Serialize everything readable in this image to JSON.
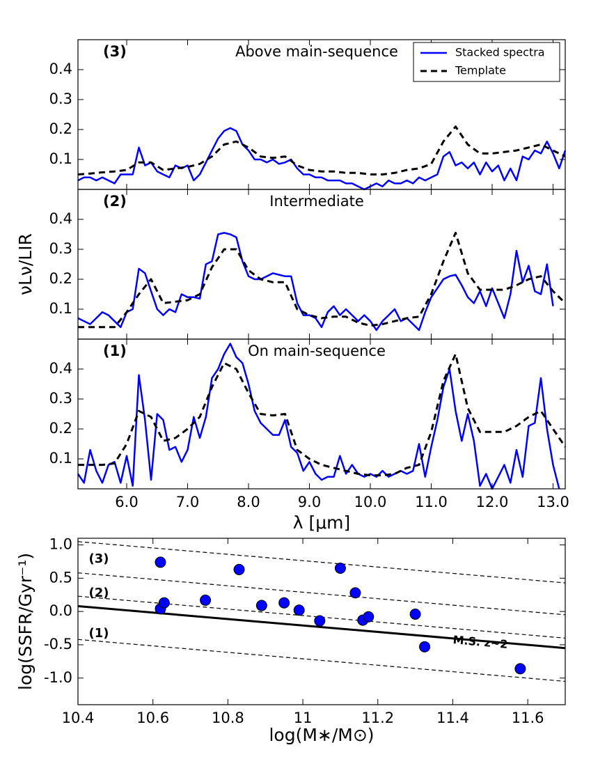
{
  "chart_data": [
    {
      "type": "line",
      "panel_label": "(3)",
      "title": "Above main-sequence",
      "legend": "upper right",
      "xlim": [
        5.2,
        13.2
      ],
      "ylim": [
        0,
        0.5
      ],
      "yticks": [
        0.1,
        0.2,
        0.3,
        0.4
      ],
      "series": [
        {
          "name": "Stacked spectra",
          "color": "#0000ff",
          "style": "solid",
          "x": [
            5.2,
            5.3,
            5.4,
            5.5,
            5.6,
            5.7,
            5.8,
            5.9,
            6.0,
            6.1,
            6.2,
            6.3,
            6.4,
            6.5,
            6.6,
            6.7,
            6.8,
            6.9,
            7.0,
            7.1,
            7.2,
            7.3,
            7.4,
            7.5,
            7.6,
            7.7,
            7.8,
            7.9,
            8.0,
            8.1,
            8.2,
            8.3,
            8.4,
            8.5,
            8.6,
            8.7,
            8.8,
            8.9,
            9.0,
            9.1,
            9.2,
            9.3,
            9.4,
            9.5,
            9.6,
            9.7,
            9.8,
            9.9,
            10.0,
            10.1,
            10.2,
            10.3,
            10.4,
            10.5,
            10.6,
            10.7,
            10.8,
            10.9,
            11.0,
            11.1,
            11.2,
            11.3,
            11.4,
            11.5,
            11.6,
            11.7,
            11.8,
            11.9,
            12.0,
            12.1,
            12.2,
            12.3,
            12.4,
            12.5,
            12.6,
            12.7,
            12.8,
            12.9,
            13.0,
            13.1,
            13.2
          ],
          "values": [
            0.03,
            0.04,
            0.04,
            0.03,
            0.04,
            0.03,
            0.02,
            0.05,
            0.05,
            0.05,
            0.14,
            0.08,
            0.09,
            0.06,
            0.05,
            0.04,
            0.08,
            0.07,
            0.08,
            0.03,
            0.05,
            0.09,
            0.13,
            0.17,
            0.195,
            0.205,
            0.195,
            0.15,
            0.13,
            0.1,
            0.1,
            0.09,
            0.1,
            0.085,
            0.09,
            0.1,
            0.07,
            0.05,
            0.05,
            0.04,
            0.04,
            0.03,
            0.03,
            0.03,
            0.02,
            0.02,
            0.01,
            0.0,
            0.01,
            0.02,
            0.01,
            0.03,
            0.02,
            0.02,
            0.03,
            0.02,
            0.04,
            0.03,
            0.04,
            0.05,
            0.11,
            0.125,
            0.08,
            0.09,
            0.07,
            0.09,
            0.05,
            0.09,
            0.06,
            0.08,
            0.03,
            0.07,
            0.03,
            0.11,
            0.1,
            0.13,
            0.12,
            0.16,
            0.12,
            0.07,
            0.13
          ]
        },
        {
          "name": "Template",
          "color": "#000000",
          "style": "dashed",
          "x": [
            5.2,
            5.4,
            5.6,
            5.8,
            6.0,
            6.2,
            6.4,
            6.6,
            6.8,
            7.0,
            7.2,
            7.4,
            7.6,
            7.8,
            8.0,
            8.2,
            8.4,
            8.6,
            8.8,
            9.0,
            9.2,
            9.4,
            9.6,
            9.8,
            10.0,
            10.2,
            10.4,
            10.6,
            10.8,
            11.0,
            11.2,
            11.4,
            11.6,
            11.8,
            12.0,
            12.2,
            12.4,
            12.6,
            12.8,
            13.0,
            13.2
          ],
          "values": [
            0.05,
            0.053,
            0.057,
            0.06,
            0.065,
            0.09,
            0.09,
            0.065,
            0.07,
            0.075,
            0.085,
            0.11,
            0.15,
            0.16,
            0.14,
            0.11,
            0.105,
            0.11,
            0.08,
            0.065,
            0.06,
            0.06,
            0.055,
            0.055,
            0.05,
            0.05,
            0.055,
            0.065,
            0.07,
            0.085,
            0.16,
            0.21,
            0.15,
            0.12,
            0.12,
            0.125,
            0.13,
            0.14,
            0.15,
            0.13,
            0.11
          ]
        }
      ]
    },
    {
      "type": "line",
      "panel_label": "(2)",
      "title": "Intermediate",
      "ylabel": "νLν/LIR",
      "xlim": [
        5.2,
        13.2
      ],
      "ylim": [
        0,
        0.5
      ],
      "yticks": [
        0.1,
        0.2,
        0.3,
        0.4
      ],
      "series": [
        {
          "color": "#0000ff",
          "style": "solid",
          "x": [
            5.2,
            5.3,
            5.4,
            5.5,
            5.6,
            5.7,
            5.8,
            5.9,
            6.0,
            6.1,
            6.2,
            6.3,
            6.4,
            6.5,
            6.6,
            6.7,
            6.8,
            6.9,
            7.0,
            7.1,
            7.2,
            7.3,
            7.4,
            7.5,
            7.6,
            7.7,
            7.8,
            7.9,
            8.0,
            8.1,
            8.2,
            8.3,
            8.4,
            8.5,
            8.6,
            8.7,
            8.8,
            8.9,
            9.0,
            9.1,
            9.2,
            9.3,
            9.4,
            9.5,
            9.6,
            9.7,
            9.8,
            9.9,
            10.0,
            10.1,
            10.2,
            10.3,
            10.4,
            10.5,
            10.6,
            10.7,
            10.8,
            10.9,
            11.0,
            11.1,
            11.2,
            11.3,
            11.4,
            11.5,
            11.6,
            11.7,
            11.8,
            11.9,
            12.0,
            12.1,
            12.2,
            12.3,
            12.4,
            12.5,
            12.6,
            12.7,
            12.8,
            12.9,
            13.0,
            13.1,
            13.2
          ],
          "values": [
            0.07,
            0.06,
            0.05,
            0.07,
            0.09,
            0.08,
            0.06,
            0.04,
            0.09,
            0.1,
            0.235,
            0.22,
            0.16,
            0.1,
            0.08,
            0.1,
            0.09,
            0.15,
            0.14,
            0.14,
            0.135,
            0.25,
            0.26,
            0.35,
            0.355,
            0.35,
            0.34,
            0.26,
            0.21,
            0.2,
            0.2,
            0.21,
            0.22,
            0.215,
            0.21,
            0.21,
            0.12,
            0.08,
            0.08,
            0.07,
            0.04,
            0.09,
            0.11,
            0.08,
            0.1,
            0.08,
            0.06,
            0.08,
            0.06,
            0.03,
            0.06,
            0.08,
            0.1,
            0.06,
            0.07,
            0.05,
            0.03,
            0.09,
            0.14,
            0.17,
            0.2,
            0.21,
            0.215,
            0.18,
            0.14,
            0.12,
            0.16,
            0.11,
            0.17,
            0.12,
            0.07,
            0.15,
            0.295,
            0.19,
            0.245,
            0.16,
            0.15,
            0.25,
            0.11,
            null,
            null
          ]
        },
        {
          "color": "#000000",
          "style": "dashed",
          "x": [
            5.2,
            5.4,
            5.6,
            5.8,
            6.0,
            6.2,
            6.4,
            6.6,
            6.8,
            7.0,
            7.2,
            7.4,
            7.6,
            7.8,
            8.0,
            8.2,
            8.4,
            8.6,
            8.8,
            9.0,
            9.2,
            9.4,
            9.6,
            9.8,
            10.0,
            10.2,
            10.4,
            10.6,
            10.8,
            11.0,
            11.2,
            11.4,
            11.6,
            11.8,
            12.0,
            12.2,
            12.4,
            12.6,
            12.8,
            13.0,
            13.2
          ],
          "values": [
            0.04,
            0.04,
            0.04,
            0.04,
            0.09,
            0.15,
            0.2,
            0.12,
            0.125,
            0.13,
            0.15,
            0.24,
            0.3,
            0.3,
            0.23,
            0.2,
            0.19,
            0.19,
            0.1,
            0.08,
            0.07,
            0.075,
            0.075,
            0.055,
            0.045,
            0.05,
            0.06,
            0.07,
            0.075,
            0.15,
            0.26,
            0.355,
            0.22,
            0.165,
            0.165,
            0.165,
            0.18,
            0.2,
            0.21,
            0.16,
            0.12
          ]
        }
      ]
    },
    {
      "type": "line",
      "panel_label": "(1)",
      "title": "On main-sequence",
      "xlabel": "λ [μm]",
      "xlim": [
        5.2,
        13.2
      ],
      "ylim": [
        0,
        0.5
      ],
      "yticks": [
        0.1,
        0.2,
        0.3,
        0.4
      ],
      "xticks": [
        {
          "value": 6,
          "label": "6.0"
        },
        {
          "value": 7,
          "label": "7.0"
        },
        {
          "value": 8,
          "label": "8.0"
        },
        {
          "value": 9,
          "label": "9.0"
        },
        {
          "value": 10,
          "label": "10.0"
        },
        {
          "value": 11,
          "label": "11.0"
        },
        {
          "value": 12,
          "label": "12.0"
        },
        {
          "value": 13,
          "label": "13.0"
        }
      ],
      "series": [
        {
          "color": "#0000ff",
          "style": "solid",
          "x": [
            5.2,
            5.3,
            5.4,
            5.5,
            5.6,
            5.7,
            5.8,
            5.9,
            6.0,
            6.1,
            6.2,
            6.3,
            6.4,
            6.5,
            6.6,
            6.7,
            6.8,
            6.9,
            7.0,
            7.1,
            7.2,
            7.3,
            7.4,
            7.5,
            7.6,
            7.7,
            7.8,
            7.9,
            8.0,
            8.1,
            8.2,
            8.3,
            8.4,
            8.5,
            8.6,
            8.7,
            8.8,
            8.9,
            9.0,
            9.1,
            9.2,
            9.3,
            9.4,
            9.5,
            9.6,
            9.7,
            9.8,
            9.9,
            10.0,
            10.1,
            10.2,
            10.3,
            10.4,
            10.5,
            10.6,
            10.7,
            10.8,
            10.9,
            11.0,
            11.1,
            11.2,
            11.3,
            11.4,
            11.5,
            11.6,
            11.7,
            11.8,
            11.9,
            12.0,
            12.1,
            12.2,
            12.3,
            12.4,
            12.5,
            12.6,
            12.7,
            12.8,
            12.9,
            13.0,
            13.1,
            13.2
          ],
          "values": [
            0.05,
            0.02,
            0.13,
            0.06,
            0.02,
            0.08,
            0.09,
            0.02,
            0.11,
            0.01,
            0.38,
            0.23,
            0.03,
            0.25,
            0.23,
            0.13,
            0.14,
            0.09,
            0.13,
            0.24,
            0.17,
            0.24,
            0.37,
            0.4,
            0.45,
            0.485,
            0.44,
            0.42,
            0.35,
            0.26,
            0.22,
            0.2,
            0.18,
            0.18,
            0.23,
            0.14,
            0.12,
            0.06,
            0.09,
            0.05,
            0.03,
            0.04,
            0.04,
            0.11,
            0.05,
            0.08,
            0.05,
            0.04,
            0.05,
            0.04,
            0.06,
            0.04,
            0.05,
            0.06,
            0.05,
            0.06,
            0.15,
            0.04,
            0.14,
            0.23,
            0.34,
            0.4,
            0.26,
            0.16,
            0.25,
            0.16,
            0.01,
            0.05,
            0.0,
            0.04,
            0.08,
            0.02,
            0.13,
            0.04,
            0.21,
            0.22,
            0.37,
            0.2,
            0.08,
            0.0,
            null
          ]
        },
        {
          "color": "#000000",
          "style": "dashed",
          "x": [
            5.2,
            5.4,
            5.6,
            5.8,
            6.0,
            6.2,
            6.4,
            6.6,
            6.8,
            7.0,
            7.2,
            7.4,
            7.6,
            7.8,
            8.0,
            8.2,
            8.4,
            8.6,
            8.8,
            9.0,
            9.2,
            9.4,
            9.6,
            9.8,
            10.0,
            10.2,
            10.4,
            10.6,
            10.8,
            11.0,
            11.2,
            11.4,
            11.6,
            11.8,
            12.0,
            12.2,
            12.4,
            12.6,
            12.8,
            13.0,
            13.2
          ],
          "values": [
            0.08,
            0.08,
            0.08,
            0.085,
            0.15,
            0.26,
            0.24,
            0.16,
            0.17,
            0.2,
            0.24,
            0.34,
            0.42,
            0.4,
            0.32,
            0.25,
            0.245,
            0.25,
            0.13,
            0.1,
            0.08,
            0.07,
            0.06,
            0.05,
            0.045,
            0.045,
            0.05,
            0.07,
            0.08,
            0.19,
            0.36,
            0.45,
            0.27,
            0.19,
            0.19,
            0.19,
            0.21,
            0.24,
            0.26,
            0.2,
            0.14
          ]
        }
      ]
    },
    {
      "type": "scatter",
      "xlabel": "log(M∗/M⊙)",
      "ylabel": "log(SSFR/Gyr⁻¹)",
      "xlim": [
        10.4,
        11.7
      ],
      "ylim": [
        -1.4,
        1.1
      ],
      "xticks": [
        10.4,
        10.6,
        10.8,
        11.0,
        11.2,
        11.4,
        11.6
      ],
      "yticks": [
        {
          "value": 1,
          "label": "1.0"
        },
        {
          "value": 0.5,
          "label": "0.5"
        },
        {
          "value": 0,
          "label": "0.0"
        },
        {
          "value": -0.5,
          "label": "-0.5"
        },
        {
          "value": -1,
          "label": "-1.0"
        }
      ],
      "color": "#0000ff",
      "x": [
        10.62,
        10.83,
        11.1,
        11.14,
        10.62,
        10.63,
        10.74,
        10.89,
        10.95,
        10.99,
        11.045,
        11.16,
        11.175,
        11.3,
        11.325,
        11.58
      ],
      "values": [
        0.74,
        0.63,
        0.65,
        0.28,
        0.04,
        0.13,
        0.17,
        0.09,
        0.13,
        0.02,
        -0.14,
        -0.13,
        -0.08,
        -0.04,
        -0.53,
        -0.86
      ],
      "lines": [
        {
          "style": "dashed",
          "x": [
            10.4,
            11.7
          ],
          "values": [
            1.05,
            0.43
          ]
        },
        {
          "style": "dashed",
          "x": [
            10.4,
            11.7
          ],
          "values": [
            0.58,
            -0.05
          ]
        },
        {
          "style": "dashed",
          "x": [
            10.4,
            11.7
          ],
          "values": [
            0.23,
            -0.4
          ]
        },
        {
          "style": "solid",
          "x": [
            10.4,
            11.7
          ],
          "values": [
            0.08,
            -0.55
          ]
        },
        {
          "style": "dashed",
          "x": [
            10.4,
            11.7
          ],
          "values": [
            -0.42,
            -1.05
          ]
        }
      ],
      "annotations": [
        "(3)",
        "(2)",
        "(1)",
        "M.S. z~2"
      ]
    }
  ]
}
